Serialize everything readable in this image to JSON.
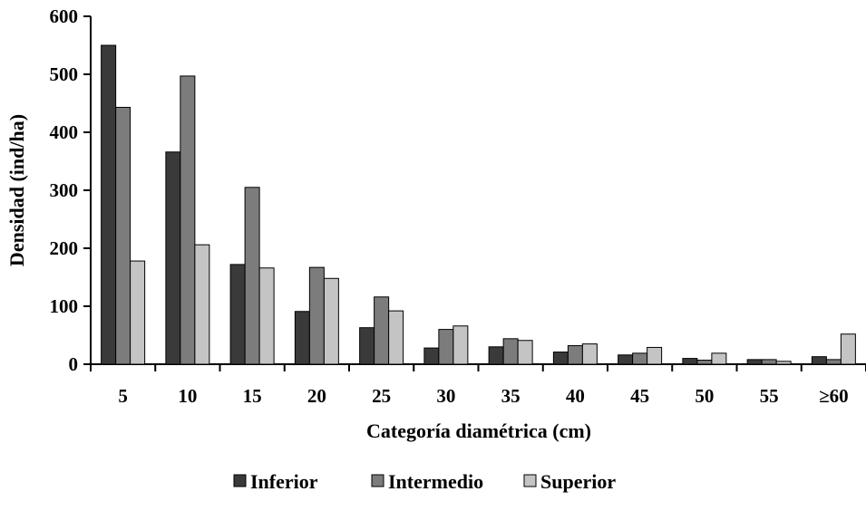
{
  "chart_data": {
    "type": "bar",
    "categories": [
      "5",
      "10",
      "15",
      "20",
      "25",
      "30",
      "35",
      "40",
      "45",
      "50",
      "55",
      "≥60"
    ],
    "series": [
      {
        "name": "Inferior",
        "color": "#3a3a3a",
        "values": [
          550,
          366,
          172,
          91,
          63,
          28,
          30,
          21,
          16,
          10,
          8,
          13
        ]
      },
      {
        "name": "Intermedio",
        "color": "#7c7c7c",
        "values": [
          443,
          497,
          305,
          167,
          116,
          60,
          44,
          32,
          19,
          7,
          8,
          8
        ]
      },
      {
        "name": "Superior",
        "color": "#c4c4c4",
        "values": [
          178,
          206,
          166,
          148,
          92,
          66,
          41,
          35,
          29,
          19,
          5,
          52
        ]
      }
    ],
    "xlabel": "Categoría diamétrica (cm)",
    "ylabel": "Densidad (ind/ha)",
    "ylim": [
      0,
      600
    ],
    "yticks": [
      0,
      100,
      200,
      300,
      400,
      500,
      600
    ],
    "grid": false,
    "legend_position": "bottom"
  }
}
